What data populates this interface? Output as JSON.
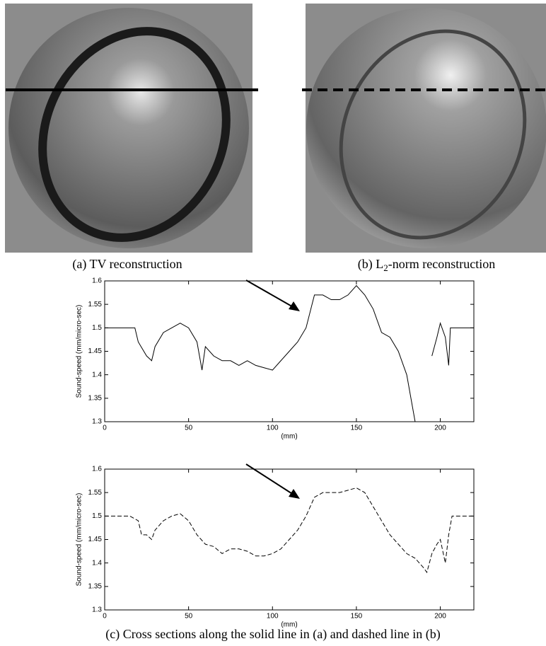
{
  "figure": {
    "caption_a": "(a)  TV reconstruction",
    "caption_b": {
      "before": "(b) L",
      "sub": "2",
      "after": "-norm reconstruction"
    },
    "caption_c": "(c) Cross sections along the solid line in (a) and dashed line in (b)"
  },
  "chart_data": [
    {
      "type": "line",
      "ylabel": "Sound-speed (mm/micro-sec)",
      "xlabel": "(mm)",
      "xlim": [
        0,
        220
      ],
      "xticks": [
        0,
        50,
        100,
        150,
        200
      ],
      "ylim": [
        1.3,
        1.6
      ],
      "yticks": [
        1.3,
        1.35,
        1.4,
        1.45,
        1.5,
        1.55,
        1.6
      ],
      "color": "#000000",
      "line_style": "solid",
      "x": [
        0,
        5,
        10,
        15,
        18,
        20,
        25,
        28,
        30,
        35,
        40,
        45,
        50,
        55,
        58,
        60,
        65,
        70,
        75,
        80,
        85,
        90,
        95,
        100,
        105,
        110,
        115,
        120,
        125,
        130,
        135,
        140,
        145,
        150,
        155,
        160,
        165,
        170,
        175,
        180,
        185,
        190,
        195,
        198,
        200,
        203,
        205,
        206,
        210,
        220
      ],
      "values": [
        1.5,
        1.5,
        1.5,
        1.5,
        1.5,
        1.47,
        1.44,
        1.43,
        1.46,
        1.49,
        1.5,
        1.51,
        1.5,
        1.47,
        1.41,
        1.46,
        1.44,
        1.43,
        1.43,
        1.42,
        1.43,
        1.42,
        1.415,
        1.41,
        1.43,
        1.45,
        1.47,
        1.5,
        1.57,
        1.57,
        1.56,
        1.56,
        1.57,
        1.59,
        1.57,
        1.54,
        1.49,
        1.48,
        1.45,
        1.4,
        1.3,
        null,
        1.44,
        1.48,
        1.51,
        1.48,
        1.42,
        1.5,
        1.5,
        1.5
      ]
    },
    {
      "type": "line",
      "ylabel": "Sound-speed (mm/micro-sec)",
      "xlabel": "(mm)",
      "xlim": [
        0,
        220
      ],
      "xticks": [
        0,
        50,
        100,
        150,
        200
      ],
      "ylim": [
        1.3,
        1.6
      ],
      "yticks": [
        1.3,
        1.35,
        1.4,
        1.45,
        1.5,
        1.55,
        1.6
      ],
      "color": "#000000",
      "line_style": "dashed",
      "x": [
        0,
        15,
        20,
        22,
        25,
        28,
        30,
        35,
        40,
        45,
        50,
        55,
        60,
        65,
        70,
        75,
        80,
        85,
        90,
        95,
        100,
        105,
        110,
        115,
        120,
        125,
        130,
        135,
        140,
        145,
        150,
        155,
        160,
        165,
        170,
        175,
        180,
        185,
        190,
        192,
        195,
        198,
        200,
        203,
        205,
        207,
        210,
        220
      ],
      "values": [
        1.5,
        1.5,
        1.49,
        1.46,
        1.46,
        1.45,
        1.47,
        1.49,
        1.5,
        1.505,
        1.49,
        1.46,
        1.44,
        1.435,
        1.42,
        1.43,
        1.43,
        1.425,
        1.415,
        1.415,
        1.42,
        1.43,
        1.45,
        1.47,
        1.5,
        1.54,
        1.55,
        1.55,
        1.55,
        1.555,
        1.56,
        1.55,
        1.52,
        1.49,
        1.46,
        1.44,
        1.42,
        1.41,
        1.39,
        1.38,
        1.42,
        1.44,
        1.45,
        1.4,
        1.46,
        1.5,
        1.5,
        1.5
      ]
    }
  ]
}
